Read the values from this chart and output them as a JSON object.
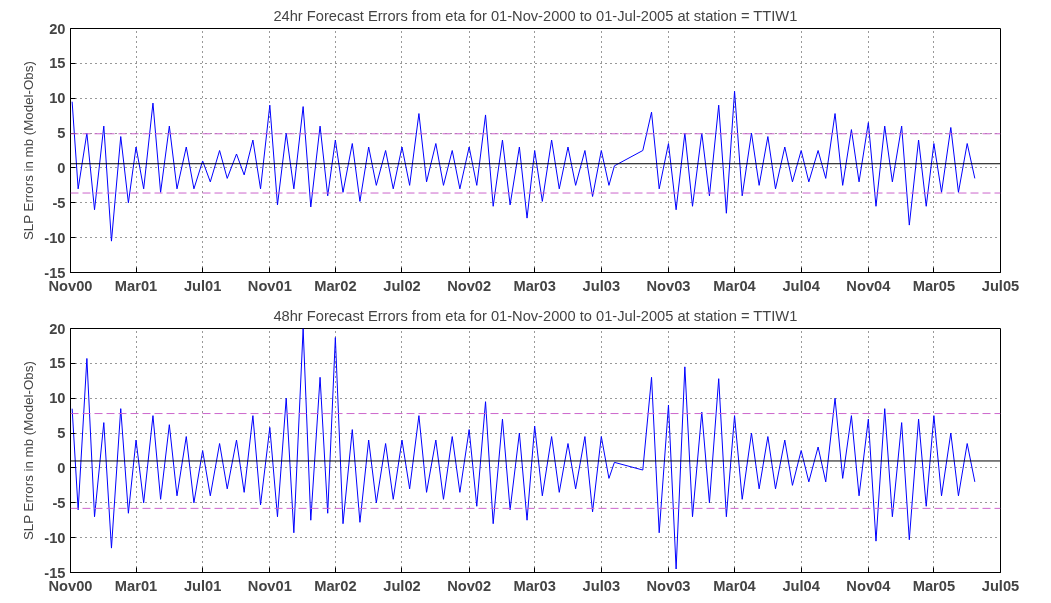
{
  "chart_data": [
    {
      "type": "line",
      "title": "24hr Forecast Errors from eta for 01-Nov-2000 to 01-Jul-2005 at station = TTIW1",
      "ylabel": "SLP Errors in mb (Model-Obs)",
      "x": [
        "2000-11-04",
        "2000-11-15",
        "2000-12-01",
        "2000-12-15",
        "2001-01-01",
        "2001-01-15",
        "2001-02-01",
        "2001-02-15",
        "2001-03-01",
        "2001-03-15",
        "2001-04-01",
        "2001-04-15",
        "2001-05-01",
        "2001-05-15",
        "2001-06-01",
        "2001-06-15",
        "2001-07-01",
        "2001-07-15",
        "2001-08-01",
        "2001-08-15",
        "2001-09-01",
        "2001-09-15",
        "2001-10-01",
        "2001-10-15",
        "2001-11-01",
        "2001-11-15",
        "2001-12-01",
        "2001-12-15",
        "2002-01-01",
        "2002-01-15",
        "2002-02-01",
        "2002-02-15",
        "2002-03-01",
        "2002-03-15",
        "2002-04-01",
        "2002-04-15",
        "2002-05-01",
        "2002-05-15",
        "2002-06-01",
        "2002-06-15",
        "2002-07-01",
        "2002-07-15",
        "2002-08-01",
        "2002-08-15",
        "2002-09-01",
        "2002-09-15",
        "2002-10-01",
        "2002-10-15",
        "2002-11-01",
        "2002-11-15",
        "2002-12-01",
        "2002-12-15",
        "2003-01-01",
        "2003-01-15",
        "2003-02-01",
        "2003-02-15",
        "2003-03-01",
        "2003-03-15",
        "2003-04-01",
        "2003-04-15",
        "2003-05-01",
        "2003-05-15",
        "2003-06-01",
        "2003-06-15",
        "2003-07-01",
        "2003-07-15",
        "2003-07-25",
        "2003-09-15",
        "2003-10-01",
        "2003-10-15",
        "2003-11-01",
        "2003-11-15",
        "2003-12-01",
        "2003-12-15",
        "2004-01-01",
        "2004-01-15",
        "2004-02-01",
        "2004-02-15",
        "2004-03-01",
        "2004-03-15",
        "2004-04-01",
        "2004-04-15",
        "2004-05-01",
        "2004-05-15",
        "2004-06-01",
        "2004-06-15",
        "2004-07-01",
        "2004-07-15",
        "2004-08-01",
        "2004-08-15",
        "2004-09-01",
        "2004-09-15",
        "2004-10-01",
        "2004-10-15",
        "2004-11-01",
        "2004-11-15",
        "2004-12-01",
        "2004-12-15",
        "2005-01-01",
        "2005-01-15",
        "2005-02-01",
        "2005-02-15",
        "2005-03-01",
        "2005-03-15",
        "2005-04-01",
        "2005-04-15",
        "2005-05-01",
        "2005-05-15"
      ],
      "series": [
        {
          "color": "#0000ff",
          "values": [
            9.5,
            -3,
            5,
            -6,
            6,
            -10.5,
            4.5,
            -5,
            3,
            -3,
            9.3,
            -3.5,
            6,
            -3,
            3,
            -3,
            1,
            -2,
            2.5,
            -1.5,
            2,
            -1,
            4,
            -3,
            9,
            -5.3,
            5,
            -3,
            8.8,
            -5.6,
            6,
            -4,
            4,
            -3.5,
            3.5,
            -4.8,
            3,
            -2.5,
            2.5,
            -3,
            3,
            -2.5,
            7.8,
            -2,
            3.5,
            -2.5,
            2.5,
            -3,
            3,
            -2.5,
            7.6,
            -5.5,
            4,
            -5.3,
            3,
            -7.2,
            2.5,
            -4.8,
            4,
            -3,
            3,
            -2.5,
            2.5,
            -4.1,
            2.5,
            -2.5,
            0.3,
            2.5,
            8,
            -3,
            3.5,
            -6,
            5,
            -5.5,
            5,
            -4,
            9,
            -6.5,
            11,
            -4,
            5,
            -2.5,
            4.5,
            -3,
            3,
            -2,
            2.5,
            -2,
            2.5,
            -1.5,
            7.8,
            -2.5,
            5.5,
            -2,
            6.5,
            -5.5,
            6,
            -2,
            6,
            -8.2,
            4,
            -5.5,
            3.5,
            -3.5,
            5.8,
            -3.5,
            3.5,
            -1.5
          ]
        }
      ],
      "xlim": [
        "2000-11-01",
        "2005-07-01"
      ],
      "xticks": [
        {
          "value": "2000-11-01",
          "label": "Nov00"
        },
        {
          "value": "2001-03-01",
          "label": "Mar01"
        },
        {
          "value": "2001-07-01",
          "label": "Jul01"
        },
        {
          "value": "2001-11-01",
          "label": "Nov01"
        },
        {
          "value": "2002-03-01",
          "label": "Mar02"
        },
        {
          "value": "2002-07-01",
          "label": "Jul02"
        },
        {
          "value": "2002-11-01",
          "label": "Nov02"
        },
        {
          "value": "2003-03-01",
          "label": "Mar03"
        },
        {
          "value": "2003-07-01",
          "label": "Jul03"
        },
        {
          "value": "2003-11-01",
          "label": "Nov03"
        },
        {
          "value": "2004-03-01",
          "label": "Mar04"
        },
        {
          "value": "2004-07-01",
          "label": "Jul04"
        },
        {
          "value": "2004-11-01",
          "label": "Nov04"
        },
        {
          "value": "2005-03-01",
          "label": "Mar05"
        },
        {
          "value": "2005-07-01",
          "label": "Jul05"
        }
      ],
      "ylim": [
        -15,
        20
      ],
      "yticks": [
        -15,
        -10,
        -5,
        0,
        5,
        10,
        15,
        20
      ],
      "grid": true,
      "ref_lines": [
        {
          "axis": "y",
          "value": 4.9,
          "color": "#cc66cc",
          "line_style": "dashed"
        },
        {
          "axis": "y",
          "value": -3.6,
          "color": "#cc66cc",
          "line_style": "dashed"
        },
        {
          "axis": "y",
          "value": 0.6,
          "color": "#000000",
          "line_style": "solid"
        }
      ]
    },
    {
      "type": "line",
      "title": "48hr Forecast Errors from eta for 01-Nov-2000 to 01-Jul-2005 at station = TTIW1",
      "ylabel": "SLP Errors in mb (Model-Obs)",
      "x": [
        "2000-11-04",
        "2000-11-15",
        "2000-12-01",
        "2000-12-15",
        "2001-01-01",
        "2001-01-15",
        "2001-02-01",
        "2001-02-15",
        "2001-03-01",
        "2001-03-15",
        "2001-04-01",
        "2001-04-15",
        "2001-05-01",
        "2001-05-15",
        "2001-06-01",
        "2001-06-15",
        "2001-07-01",
        "2001-07-15",
        "2001-08-01",
        "2001-08-15",
        "2001-09-01",
        "2001-09-15",
        "2001-10-01",
        "2001-10-15",
        "2001-11-01",
        "2001-11-15",
        "2001-12-01",
        "2001-12-15",
        "2002-01-01",
        "2002-01-15",
        "2002-02-01",
        "2002-02-15",
        "2002-03-01",
        "2002-03-15",
        "2002-04-01",
        "2002-04-15",
        "2002-05-01",
        "2002-05-15",
        "2002-06-01",
        "2002-06-15",
        "2002-07-01",
        "2002-07-15",
        "2002-08-01",
        "2002-08-15",
        "2002-09-01",
        "2002-09-15",
        "2002-10-01",
        "2002-10-15",
        "2002-11-01",
        "2002-11-15",
        "2002-12-01",
        "2002-12-15",
        "2003-01-01",
        "2003-01-15",
        "2003-02-01",
        "2003-02-15",
        "2003-03-01",
        "2003-03-15",
        "2003-04-01",
        "2003-04-15",
        "2003-05-01",
        "2003-05-15",
        "2003-06-01",
        "2003-06-15",
        "2003-07-01",
        "2003-07-15",
        "2003-07-25",
        "2003-09-15",
        "2003-10-01",
        "2003-10-15",
        "2003-11-01",
        "2003-11-15",
        "2003-12-01",
        "2003-12-15",
        "2004-01-01",
        "2004-01-15",
        "2004-02-01",
        "2004-02-15",
        "2004-03-01",
        "2004-03-15",
        "2004-04-01",
        "2004-04-15",
        "2004-05-01",
        "2004-05-15",
        "2004-06-01",
        "2004-06-15",
        "2004-07-01",
        "2004-07-15",
        "2004-08-01",
        "2004-08-15",
        "2004-09-01",
        "2004-09-15",
        "2004-10-01",
        "2004-10-15",
        "2004-11-01",
        "2004-11-15",
        "2004-12-01",
        "2004-12-15",
        "2005-01-01",
        "2005-01-15",
        "2005-02-01",
        "2005-02-15",
        "2005-03-01",
        "2005-03-15",
        "2005-04-01",
        "2005-04-15",
        "2005-05-01",
        "2005-05-15"
      ],
      "series": [
        {
          "color": "#0000ff",
          "values": [
            8.5,
            -6,
            15.7,
            -7,
            6.5,
            -11.5,
            8.5,
            -6.5,
            4,
            -5,
            7.5,
            -4.5,
            6.2,
            -4,
            4.5,
            -5,
            2.5,
            -4,
            3.5,
            -3,
            4,
            -3.5,
            7.5,
            -5.3,
            5.8,
            -7,
            10,
            -9.3,
            20,
            -7.5,
            13,
            -6.5,
            18.7,
            -8,
            5.5,
            -7.8,
            4,
            -5,
            3.5,
            -4.5,
            4,
            -3,
            7.5,
            -3.5,
            4,
            -4.5,
            4.5,
            -3.5,
            5.5,
            -5.5,
            9.5,
            -8,
            7,
            -6,
            5,
            -7.5,
            6,
            -4,
            4.5,
            -3.5,
            3.5,
            -3,
            4.5,
            -6.3,
            4.5,
            -1.5,
            0.8,
            -0.3,
            13,
            -9.3,
            9,
            -14.5,
            14.5,
            -7,
            8,
            -5,
            12.8,
            -7,
            7.5,
            -4.5,
            5,
            -3,
            4.5,
            -3,
            4,
            -2.5,
            2.5,
            -2,
            3,
            -2,
            10,
            -1.5,
            7.5,
            -4,
            7,
            -10.5,
            8.5,
            -7,
            6.5,
            -10.3,
            7,
            -5.5,
            7.5,
            -4,
            5,
            -4,
            3.5,
            -2
          ]
        }
      ],
      "xlim": [
        "2000-11-01",
        "2005-07-01"
      ],
      "xticks": [
        {
          "value": "2000-11-01",
          "label": "Nov00"
        },
        {
          "value": "2001-03-01",
          "label": "Mar01"
        },
        {
          "value": "2001-07-01",
          "label": "Jul01"
        },
        {
          "value": "2001-11-01",
          "label": "Nov01"
        },
        {
          "value": "2002-03-01",
          "label": "Mar02"
        },
        {
          "value": "2002-07-01",
          "label": "Jul02"
        },
        {
          "value": "2002-11-01",
          "label": "Nov02"
        },
        {
          "value": "2003-03-01",
          "label": "Mar03"
        },
        {
          "value": "2003-07-01",
          "label": "Jul03"
        },
        {
          "value": "2003-11-01",
          "label": "Nov03"
        },
        {
          "value": "2004-03-01",
          "label": "Mar04"
        },
        {
          "value": "2004-07-01",
          "label": "Jul04"
        },
        {
          "value": "2004-11-01",
          "label": "Nov04"
        },
        {
          "value": "2005-03-01",
          "label": "Mar05"
        },
        {
          "value": "2005-07-01",
          "label": "Jul05"
        }
      ],
      "ylim": [
        -15,
        20
      ],
      "yticks": [
        -15,
        -10,
        -5,
        0,
        5,
        10,
        15,
        20
      ],
      "grid": true,
      "ref_lines": [
        {
          "axis": "y",
          "value": 7.8,
          "color": "#cc66cc",
          "line_style": "dashed"
        },
        {
          "axis": "y",
          "value": -5.8,
          "color": "#cc66cc",
          "line_style": "dashed"
        },
        {
          "axis": "y",
          "value": 1.0,
          "color": "#000000",
          "line_style": "solid"
        }
      ]
    }
  ]
}
